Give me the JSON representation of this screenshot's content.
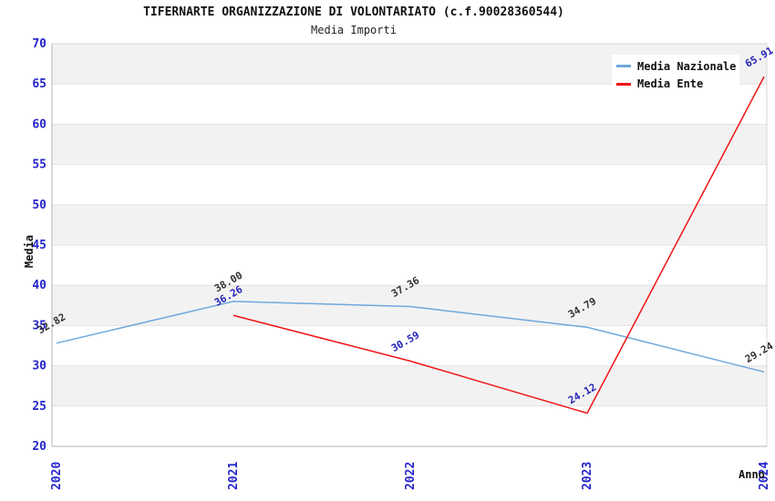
{
  "chart_data": {
    "type": "line",
    "title": "TIFERNARTE ORGANIZZAZIONE DI VOLONTARIATO (c.f.90028360544)",
    "subtitle": "Media Importi",
    "xlabel": "Anno",
    "ylabel": "Media",
    "x": [
      "2020",
      "2021",
      "2022",
      "2023",
      "2024"
    ],
    "ylim": [
      20,
      70
    ],
    "ytick_step": 5,
    "grid": true,
    "legend_position": "top-right",
    "series": [
      {
        "name": "Media Nazionale",
        "color": "#6fa8dc",
        "label_color": "#333333",
        "values": [
          32.82,
          38.0,
          37.36,
          34.79,
          29.24
        ]
      },
      {
        "name": "Media Ente",
        "color": "#f01515",
        "label_color": "#2424b8",
        "values": [
          null,
          36.26,
          30.59,
          24.12,
          65.91
        ]
      }
    ],
    "colors": {
      "tick_label": "#2424cc",
      "band": "#f2f2f2",
      "gridline": "#e2e2e2",
      "spine": "#b5b5b5",
      "border": "#d5d5d5",
      "background": "#ffffff"
    }
  }
}
